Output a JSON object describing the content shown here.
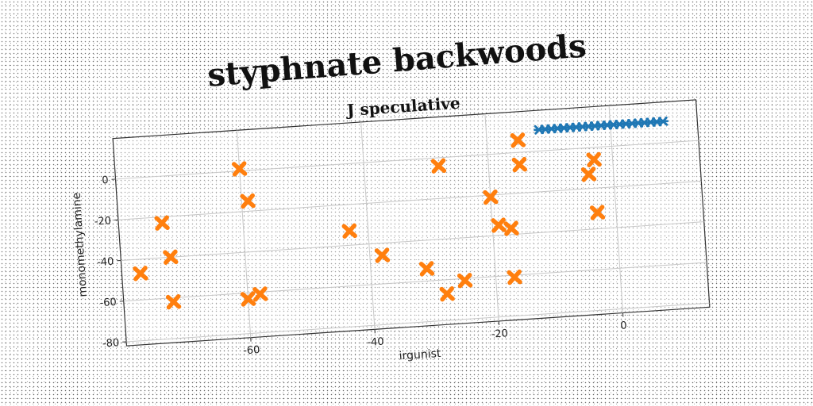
{
  "chart_data": {
    "type": "scatter",
    "suptitle": "styphnate backwoods",
    "title": "J speculative",
    "xlabel": "irgunist",
    "ylabel": "monomethylamine",
    "xlim": [
      -80,
      14
    ],
    "ylim": [
      -82,
      20
    ],
    "xticks": [
      -60,
      -40,
      -20,
      0
    ],
    "yticks": [
      0,
      -20,
      -40,
      -60,
      -80
    ],
    "grid": true,
    "series": [
      {
        "marker": "x-small",
        "color": "#1f77b4",
        "x": [
          -11.5,
          -10.5,
          -9.5,
          -8.5,
          -7.5,
          -6.5,
          -5.5,
          -4.5,
          -3.5,
          -2.5,
          -1.5,
          -0.5,
          0.5,
          1.5,
          2.5,
          3.5,
          4.5,
          5.5,
          6.5,
          7.5,
          8.5
        ],
        "y": [
          10.5,
          10.5,
          10.5,
          10.5,
          10.5,
          10.5,
          10.5,
          10.5,
          10.5,
          10.5,
          10.5,
          10.5,
          10.5,
          10.5,
          10.5,
          10.5,
          10.5,
          10.5,
          10.5,
          10.5,
          10.5
        ]
      },
      {
        "marker": "X",
        "color": "#ff7f0e",
        "x": [
          -60,
          -59,
          -73,
          -72,
          -77,
          -72,
          -60,
          -58,
          -43,
          -38,
          -31,
          -28,
          -28,
          -25,
          -20,
          -19,
          -17,
          -17,
          -15,
          -15,
          -4,
          -3,
          -3
        ],
        "y": [
          1,
          -15,
          -23,
          -40,
          -47,
          -62,
          -63,
          -61,
          -33,
          -46,
          -54,
          -4,
          -67,
          -61,
          -21,
          -35,
          -37,
          -61,
          6,
          -6,
          -13,
          -6,
          -32
        ]
      }
    ]
  }
}
